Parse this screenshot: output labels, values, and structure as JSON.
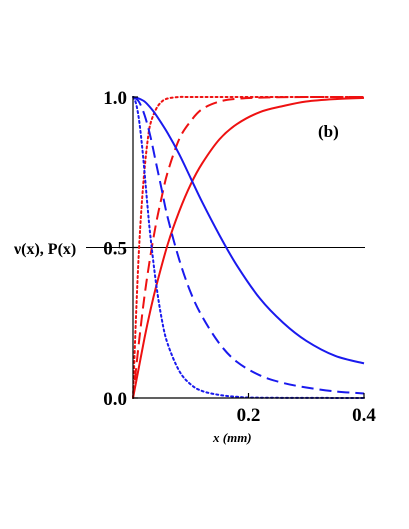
{
  "chart_data": {
    "type": "line",
    "panel_label": "(b)",
    "ylabel": "ν(x), P(x)",
    "xlabel": "x (mm)",
    "xlim": [
      0,
      0.4
    ],
    "ylim": [
      0,
      1
    ],
    "xticks": [
      {
        "v": 0.2,
        "label": "0.2"
      },
      {
        "v": 0.4,
        "label": "0.4"
      }
    ],
    "yticks": [
      {
        "v": 0,
        "label": "0.0"
      },
      {
        "v": 0.5,
        "label": "0.5"
      },
      {
        "v": 1,
        "label": "1.0"
      }
    ],
    "reference_line": {
      "y": 0.5
    },
    "colors": {
      "red": "#ee1111",
      "blue": "#1a1aee",
      "axis": "#000000"
    },
    "series": [
      {
        "color": "red",
        "style": "solid",
        "x": [
          0,
          0.01,
          0.02,
          0.03,
          0.04,
          0.06,
          0.08,
          0.1,
          0.12,
          0.15,
          0.18,
          0.22,
          0.26,
          0.3,
          0.35,
          0.4
        ],
        "y": [
          0,
          0.1,
          0.2,
          0.29,
          0.37,
          0.51,
          0.62,
          0.71,
          0.78,
          0.86,
          0.91,
          0.95,
          0.97,
          0.985,
          0.993,
          0.997
        ]
      },
      {
        "color": "red",
        "style": "dashed",
        "x": [
          0,
          0.01,
          0.02,
          0.03,
          0.04,
          0.05,
          0.06,
          0.08,
          0.1,
          0.12,
          0.15,
          0.18,
          0.22,
          0.3,
          0.4
        ],
        "y": [
          0,
          0.18,
          0.34,
          0.47,
          0.58,
          0.67,
          0.75,
          0.86,
          0.92,
          0.96,
          0.985,
          0.994,
          0.998,
          1.0,
          1.0
        ]
      },
      {
        "color": "red",
        "style": "dotted",
        "x": [
          0,
          0.005,
          0.01,
          0.015,
          0.02,
          0.025,
          0.03,
          0.04,
          0.05,
          0.06,
          0.08,
          0.1,
          0.15,
          0.4
        ],
        "y": [
          0,
          0.26,
          0.48,
          0.64,
          0.76,
          0.85,
          0.91,
          0.96,
          0.985,
          0.995,
          1.0,
          1.0,
          1.0,
          1.0
        ]
      },
      {
        "color": "blue",
        "style": "solid",
        "x": [
          0,
          0.01,
          0.02,
          0.03,
          0.04,
          0.06,
          0.08,
          0.1,
          0.12,
          0.15,
          0.18,
          0.22,
          0.26,
          0.3,
          0.35,
          0.4
        ],
        "y": [
          1.0,
          0.995,
          0.985,
          0.965,
          0.94,
          0.88,
          0.81,
          0.73,
          0.65,
          0.54,
          0.44,
          0.33,
          0.25,
          0.19,
          0.14,
          0.115
        ]
      },
      {
        "color": "blue",
        "style": "dashed",
        "x": [
          0,
          0.01,
          0.02,
          0.03,
          0.04,
          0.05,
          0.06,
          0.08,
          0.1,
          0.12,
          0.15,
          0.18,
          0.22,
          0.26,
          0.3,
          0.35,
          0.4
        ],
        "y": [
          1.0,
          0.985,
          0.94,
          0.87,
          0.78,
          0.69,
          0.6,
          0.46,
          0.35,
          0.27,
          0.18,
          0.12,
          0.075,
          0.05,
          0.035,
          0.022,
          0.015
        ]
      },
      {
        "color": "blue",
        "style": "dotted",
        "x": [
          0,
          0.005,
          0.01,
          0.015,
          0.02,
          0.025,
          0.03,
          0.04,
          0.05,
          0.06,
          0.08,
          0.1,
          0.12,
          0.15,
          0.18,
          0.22,
          0.4
        ],
        "y": [
          1.0,
          0.98,
          0.93,
          0.85,
          0.75,
          0.64,
          0.54,
          0.38,
          0.26,
          0.18,
          0.09,
          0.045,
          0.023,
          0.01,
          0.004,
          0.001,
          0.0
        ]
      }
    ]
  }
}
